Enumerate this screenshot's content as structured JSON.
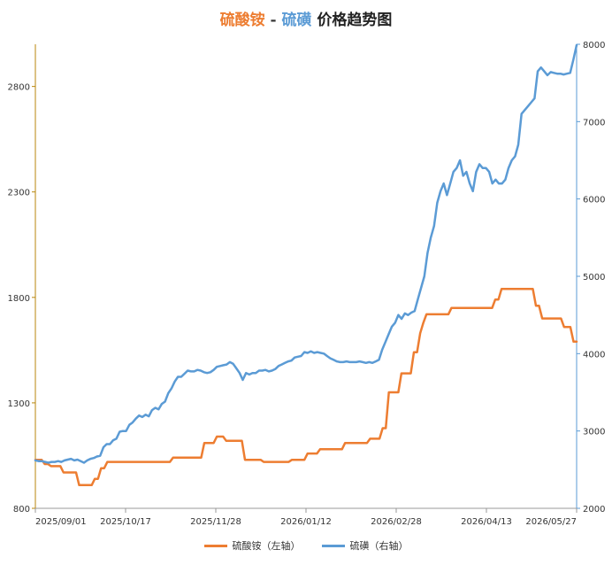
{
  "title": {
    "part1": "硫酸铵",
    "sep": " - ",
    "part2": "硫磺",
    "part3": " 价格趋势图"
  },
  "colors": {
    "series1": "#ED7D31",
    "series2": "#5B9BD5",
    "left_axis": "#B8860B",
    "right_axis": "#5B9BD5"
  },
  "chart_data": {
    "type": "line",
    "x_ticks": [
      "2025/09/01",
      "2025/10/17",
      "2025/11/28",
      "2026/01/12",
      "2026/02/28",
      "2026/04/13",
      "2026/05/27"
    ],
    "y_left": {
      "min": 800,
      "max": 3000,
      "ticks": [
        800,
        1300,
        1800,
        2300,
        2800
      ]
    },
    "y_right": {
      "min": 2000,
      "max": 8000,
      "ticks": [
        2000,
        3000,
        4000,
        5000,
        6000,
        7000,
        8000
      ]
    },
    "legend_position": "bottom",
    "grid": false,
    "series": [
      {
        "name": "硫酸铵（左轴）",
        "axis": "left",
        "values": [
          1030,
          1030,
          1030,
          1010,
          1010,
          1000,
          1000,
          1000,
          1000,
          970,
          970,
          970,
          970,
          970,
          910,
          910,
          910,
          910,
          910,
          940,
          940,
          990,
          990,
          1020,
          1020,
          1020,
          1020,
          1020,
          1020,
          1020,
          1020,
          1020,
          1020,
          1020,
          1020,
          1020,
          1020,
          1020,
          1020,
          1020,
          1020,
          1020,
          1020,
          1020,
          1040,
          1040,
          1040,
          1040,
          1040,
          1040,
          1040,
          1040,
          1040,
          1040,
          1110,
          1110,
          1110,
          1110,
          1140,
          1140,
          1140,
          1120,
          1120,
          1120,
          1120,
          1120,
          1120,
          1030,
          1030,
          1030,
          1030,
          1030,
          1030,
          1020,
          1020,
          1020,
          1020,
          1020,
          1020,
          1020,
          1020,
          1020,
          1030,
          1030,
          1030,
          1030,
          1030,
          1060,
          1060,
          1060,
          1060,
          1080,
          1080,
          1080,
          1080,
          1080,
          1080,
          1080,
          1080,
          1110,
          1110,
          1110,
          1110,
          1110,
          1110,
          1110,
          1110,
          1130,
          1130,
          1130,
          1130,
          1180,
          1180,
          1350,
          1350,
          1350,
          1350,
          1440,
          1440,
          1440,
          1440,
          1540,
          1540,
          1630,
          1680,
          1720,
          1720,
          1720,
          1720,
          1720,
          1720,
          1720,
          1720,
          1750,
          1750,
          1750,
          1750,
          1750,
          1750,
          1750,
          1750,
          1750,
          1750,
          1750,
          1750,
          1750,
          1750,
          1790,
          1790,
          1840,
          1840,
          1840,
          1840,
          1840,
          1840,
          1840,
          1840,
          1840,
          1840,
          1840,
          1760,
          1760,
          1700,
          1700,
          1700,
          1700,
          1700,
          1700,
          1700,
          1660,
          1660,
          1660,
          1590,
          1590
        ]
      },
      {
        "name": "硫磺（右轴）",
        "axis": "right",
        "values": [
          2620,
          2610,
          2610,
          2600,
          2590,
          2600,
          2600,
          2610,
          2600,
          2620,
          2630,
          2640,
          2620,
          2630,
          2610,
          2590,
          2620,
          2640,
          2650,
          2670,
          2680,
          2790,
          2830,
          2830,
          2880,
          2900,
          2990,
          3000,
          3000,
          3080,
          3110,
          3160,
          3200,
          3180,
          3210,
          3190,
          3270,
          3300,
          3280,
          3350,
          3380,
          3490,
          3550,
          3640,
          3700,
          3700,
          3740,
          3780,
          3770,
          3770,
          3790,
          3780,
          3760,
          3750,
          3760,
          3790,
          3830,
          3840,
          3850,
          3860,
          3890,
          3870,
          3810,
          3750,
          3660,
          3750,
          3730,
          3750,
          3750,
          3780,
          3780,
          3790,
          3770,
          3780,
          3800,
          3840,
          3860,
          3880,
          3900,
          3910,
          3950,
          3960,
          3970,
          4020,
          4010,
          4030,
          4010,
          4020,
          4010,
          4000,
          3970,
          3940,
          3920,
          3900,
          3890,
          3890,
          3900,
          3890,
          3890,
          3890,
          3900,
          3890,
          3880,
          3890,
          3880,
          3900,
          3920,
          4050,
          4150,
          4250,
          4350,
          4400,
          4500,
          4450,
          4520,
          4500,
          4530,
          4550,
          4700,
          4850,
          5000,
          5300,
          5500,
          5650,
          5950,
          6100,
          6200,
          6050,
          6200,
          6350,
          6400,
          6500,
          6300,
          6350,
          6200,
          6100,
          6350,
          6450,
          6400,
          6400,
          6350,
          6200,
          6250,
          6200,
          6200,
          6250,
          6400,
          6500,
          6550,
          6700,
          7100,
          7150,
          7200,
          7250,
          7300,
          7650,
          7700,
          7650,
          7600,
          7640,
          7630,
          7620,
          7620,
          7610,
          7620,
          7630,
          7800,
          7990
        ]
      }
    ]
  }
}
